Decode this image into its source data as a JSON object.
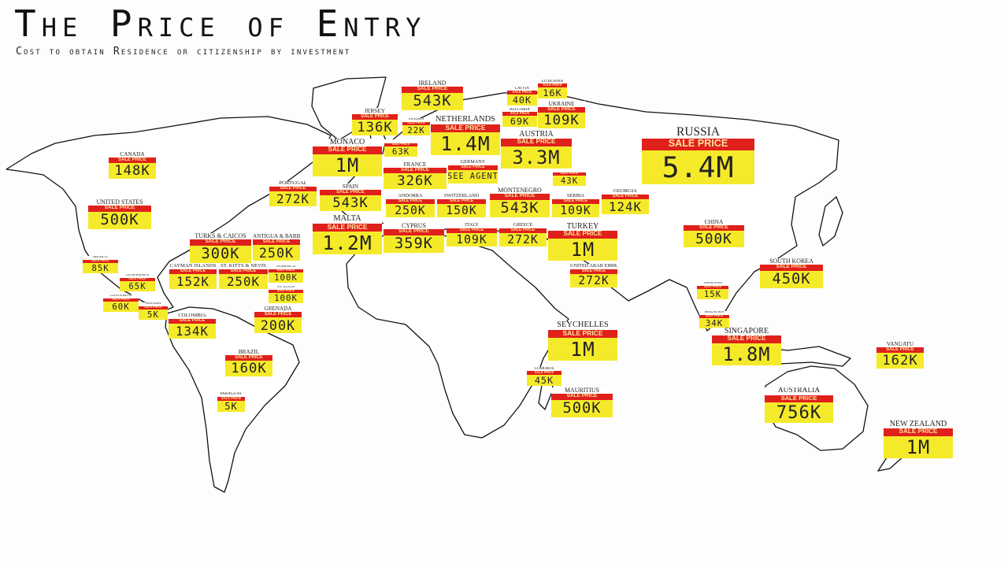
{
  "title": "The Price of Entry",
  "subtitle": "Cost to obtain Residence or citizenship by investment",
  "tag_label": "SALE PRICE",
  "colors": {
    "tag_fill": "#f5ea2a",
    "banner": "#e0201b",
    "map_outline": "#111111"
  },
  "tags": [
    {
      "name": "IRELAND",
      "price": "543K"
    },
    {
      "name": "JERSEY",
      "price": "136K"
    },
    {
      "name": "SWEDEN",
      "price": "22K"
    },
    {
      "name": "NETHERLANDS",
      "price": "1.4M"
    },
    {
      "name": "LATVIA",
      "price": "40K"
    },
    {
      "name": "LITHUANIA",
      "price": "16K"
    },
    {
      "name": "BULGARIA",
      "price": "69K"
    },
    {
      "name": "UKRAINE",
      "price": "109K"
    },
    {
      "name": "MONACO",
      "price": "1M"
    },
    {
      "name": "",
      "price": "63K"
    },
    {
      "name": "AUSTRIA",
      "price": "3.3M"
    },
    {
      "name": "RUSSIA",
      "price": "5.4M"
    },
    {
      "name": "CANADA",
      "price": "148K"
    },
    {
      "name": "FRANCE",
      "price": "326K"
    },
    {
      "name": "GERMANY",
      "price": "SEE AGENT"
    },
    {
      "name": "",
      "price": "43K"
    },
    {
      "name": "PORTUGAL",
      "price": "272K"
    },
    {
      "name": "SPAIN",
      "price": "543K"
    },
    {
      "name": "ANDORRA",
      "price": "250K"
    },
    {
      "name": "SWITZERLAND",
      "price": "150K"
    },
    {
      "name": "MONTENEGRO",
      "price": "543K"
    },
    {
      "name": "SERBIA",
      "price": "109K"
    },
    {
      "name": "GEORGIA",
      "price": "124K"
    },
    {
      "name": "UNITED STATES",
      "price": "500K"
    },
    {
      "name": "MALTA",
      "price": "1.2M"
    },
    {
      "name": "CYPRUS",
      "price": "359K"
    },
    {
      "name": "ITALY",
      "price": "109K"
    },
    {
      "name": "GREECE",
      "price": "272K"
    },
    {
      "name": "TURKEY",
      "price": "1M"
    },
    {
      "name": "CHINA",
      "price": "500K"
    },
    {
      "name": "TURKS & CAICOS",
      "price": "300K"
    },
    {
      "name": "ANTIGUA & BARBUDA",
      "price": "250K"
    },
    {
      "name": "MEXICO",
      "price": "85K"
    },
    {
      "name": "CAYMAN ISLANDS",
      "price": "152K"
    },
    {
      "name": "ST. KITTS & NEVIS",
      "price": "250K"
    },
    {
      "name": "DOMINICA",
      "price": "100K"
    },
    {
      "name": "GUATEMALA",
      "price": "65K"
    },
    {
      "name": "SOUTH KOREA",
      "price": "450K"
    },
    {
      "name": "UNITED ARAB EMIRATES",
      "price": "272K"
    },
    {
      "name": "ST. LUCIA",
      "price": "100K"
    },
    {
      "name": "COSTA RICA",
      "price": "60K"
    },
    {
      "name": "PANAMA",
      "price": "5K"
    },
    {
      "name": "THAILAND",
      "price": "15K"
    },
    {
      "name": "GRENADA",
      "price": "200K"
    },
    {
      "name": "COLOMBIA",
      "price": "134K"
    },
    {
      "name": "MALAYSIA",
      "price": "34K"
    },
    {
      "name": "SEYCHELLES",
      "price": "1M"
    },
    {
      "name": "SINGAPORE",
      "price": "1.8M"
    },
    {
      "name": "VANUATU",
      "price": "162K"
    },
    {
      "name": "BRAZIL",
      "price": "160K"
    },
    {
      "name": "COMOROS",
      "price": "45K"
    },
    {
      "name": "MAURITIUS",
      "price": "500K"
    },
    {
      "name": "AUSTRALIA",
      "price": "756K"
    },
    {
      "name": "PARAGUAY",
      "price": "5K"
    },
    {
      "name": "NEW ZEALAND",
      "price": "1M"
    }
  ]
}
